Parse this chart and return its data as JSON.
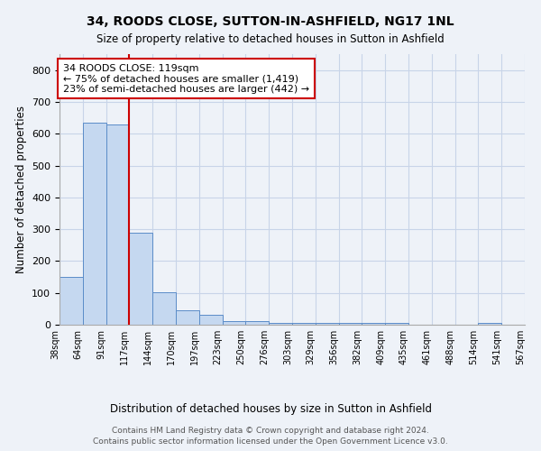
{
  "title": "34, ROODS CLOSE, SUTTON-IN-ASHFIELD, NG17 1NL",
  "subtitle": "Size of property relative to detached houses in Sutton in Ashfield",
  "xlabel": "Distribution of detached houses by size in Sutton in Ashfield",
  "ylabel": "Number of detached properties",
  "footer_line1": "Contains HM Land Registry data © Crown copyright and database right 2024.",
  "footer_line2": "Contains public sector information licensed under the Open Government Licence v3.0.",
  "bin_labels": [
    "38sqm",
    "64sqm",
    "91sqm",
    "117sqm",
    "144sqm",
    "170sqm",
    "197sqm",
    "223sqm",
    "250sqm",
    "276sqm",
    "303sqm",
    "329sqm",
    "356sqm",
    "382sqm",
    "409sqm",
    "435sqm",
    "461sqm",
    "488sqm",
    "514sqm",
    "541sqm",
    "567sqm"
  ],
  "bar_values": [
    150,
    635,
    630,
    290,
    103,
    45,
    30,
    10,
    10,
    5,
    5,
    5,
    5,
    5,
    5,
    0,
    0,
    0,
    5,
    0
  ],
  "bar_color": "#c5d8f0",
  "bar_edge_color": "#5b8cc8",
  "grid_color": "#c8d4e8",
  "background_color": "#eef2f8",
  "red_line_x": 3,
  "red_line_color": "#cc0000",
  "annotation_title": "34 ROODS CLOSE: 119sqm",
  "annotation_line1": "← 75% of detached houses are smaller (1,419)",
  "annotation_line2": "23% of semi-detached houses are larger (442) →",
  "ylim": [
    0,
    850
  ],
  "yticks": [
    0,
    100,
    200,
    300,
    400,
    500,
    600,
    700,
    800
  ]
}
